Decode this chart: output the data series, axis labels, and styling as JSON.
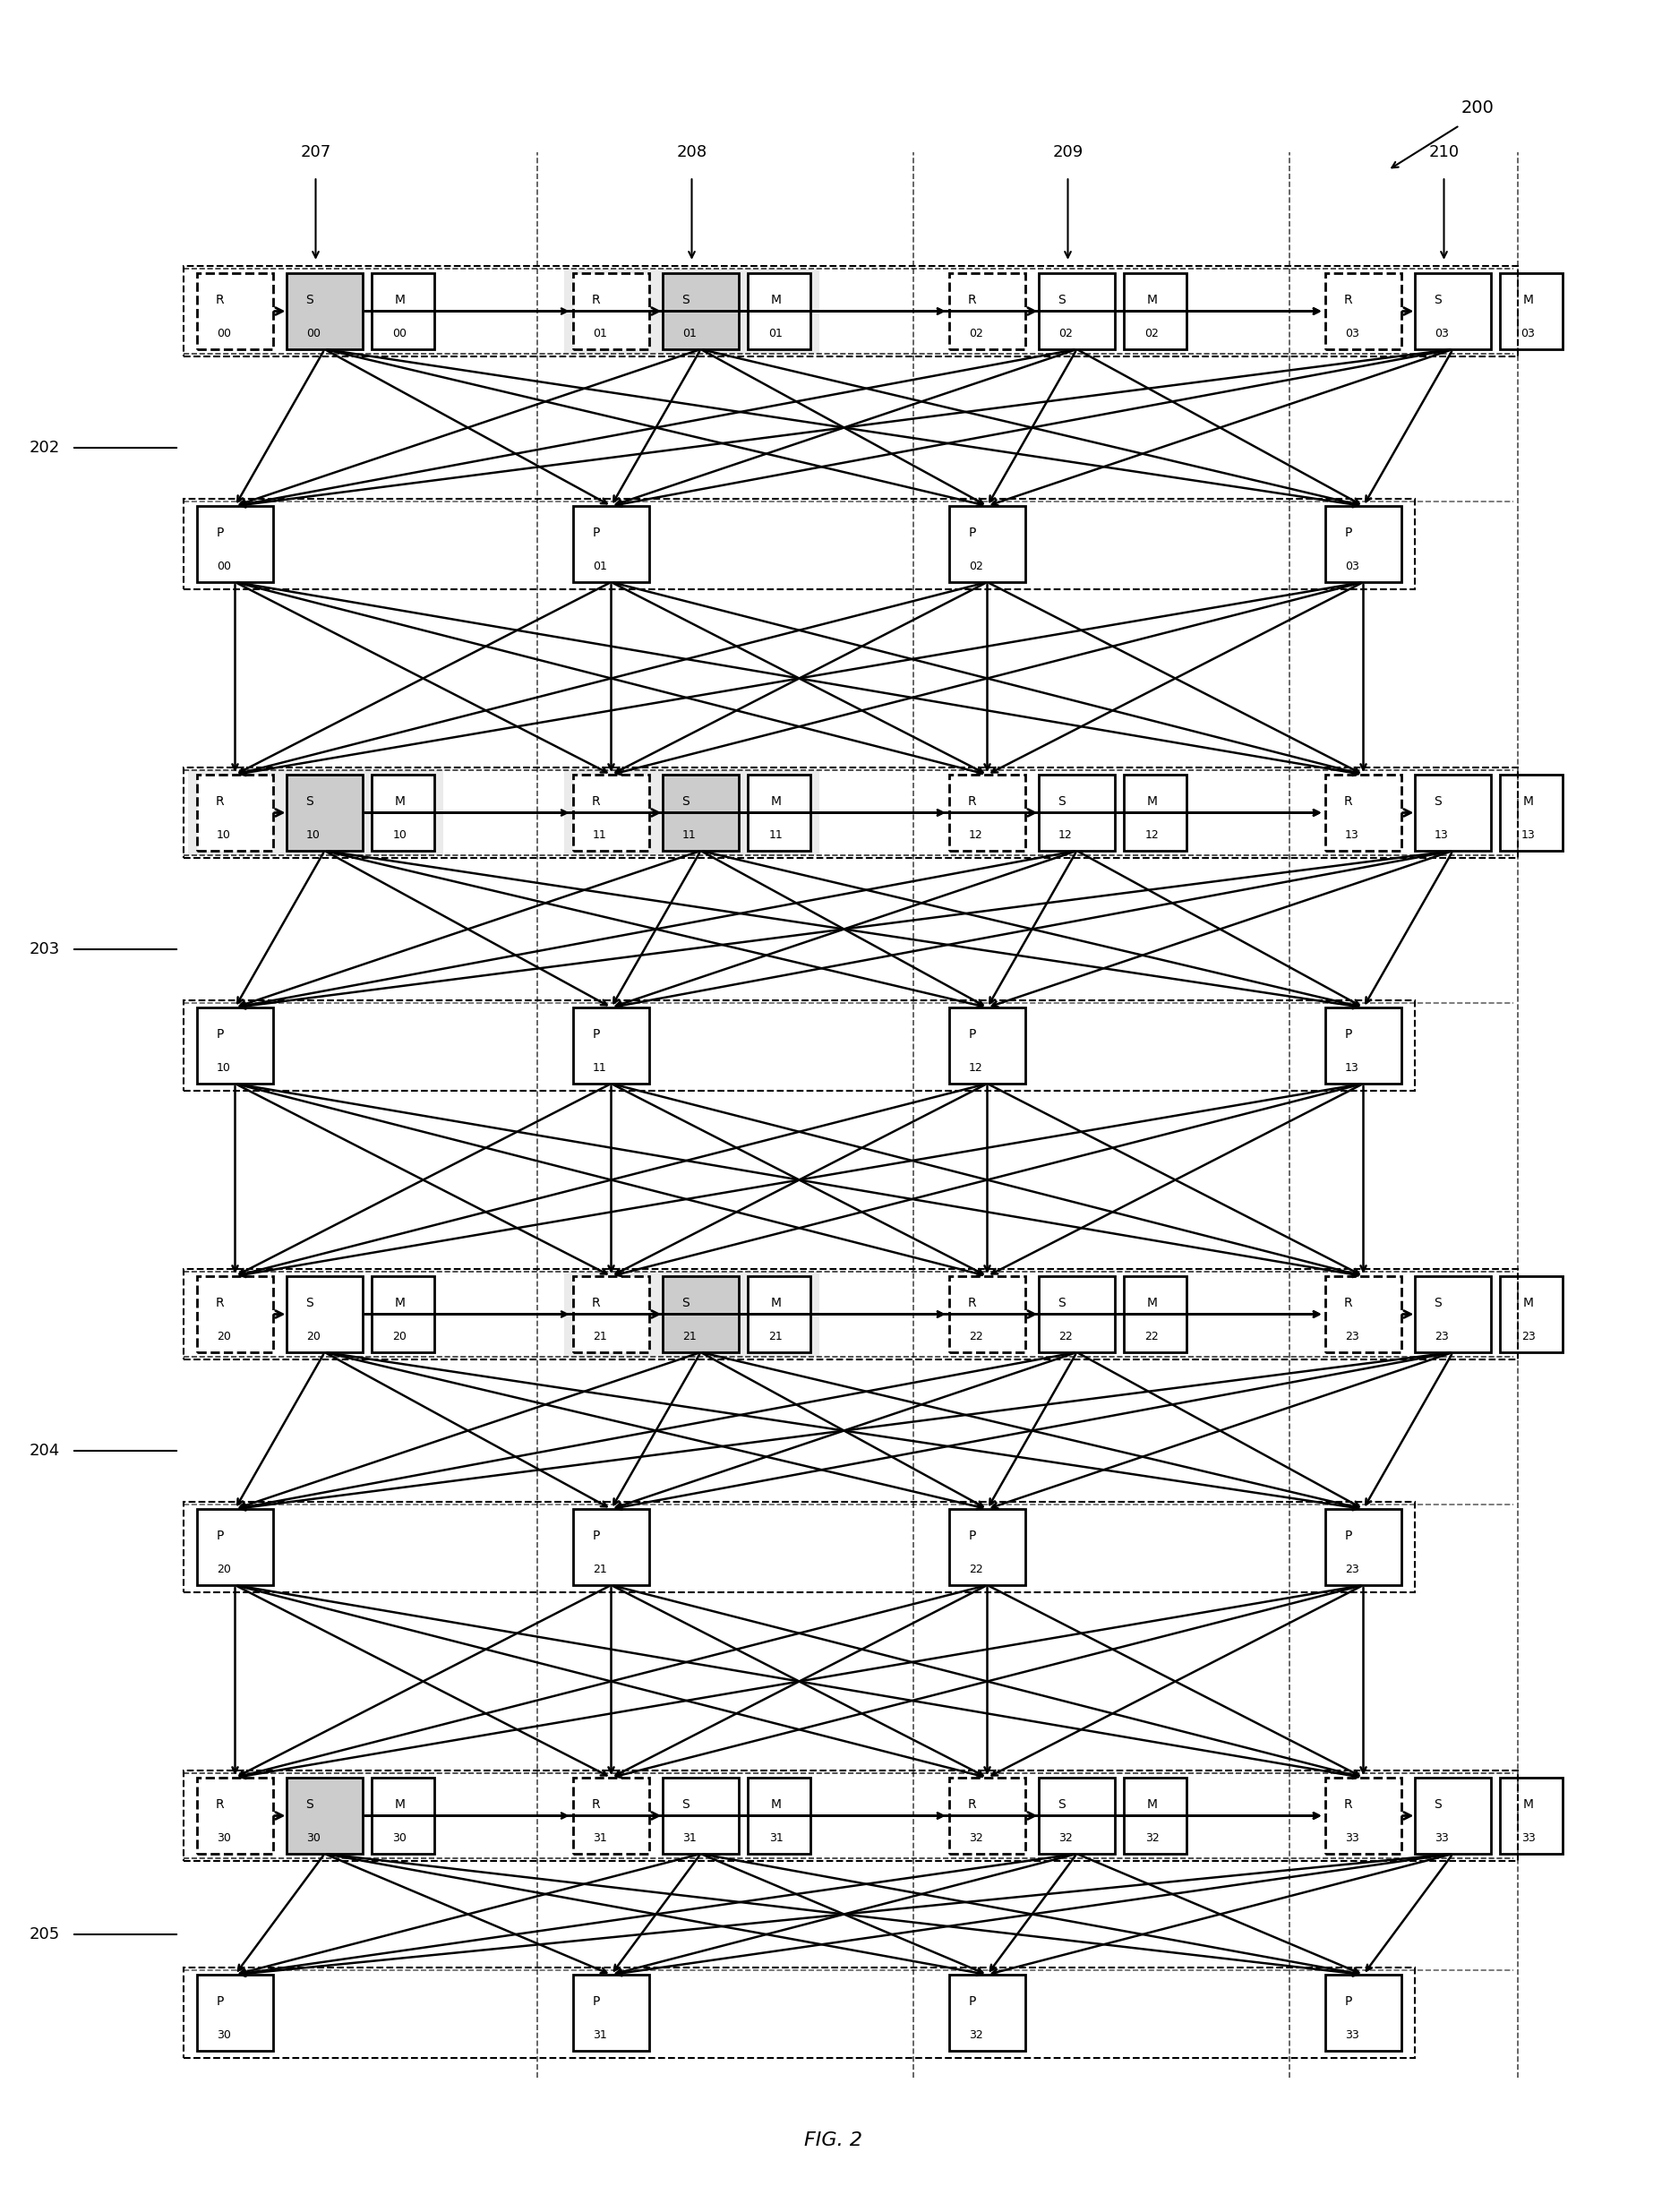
{
  "fig_width": 18.75,
  "fig_height": 24.7,
  "title": "FIG. 2",
  "fig_label": "200",
  "row_labels": [
    "202",
    "203",
    "204",
    "205"
  ],
  "col_labels": [
    "207",
    "208",
    "209",
    "210"
  ],
  "rows": 4,
  "cols": 4,
  "background": "#ffffff"
}
